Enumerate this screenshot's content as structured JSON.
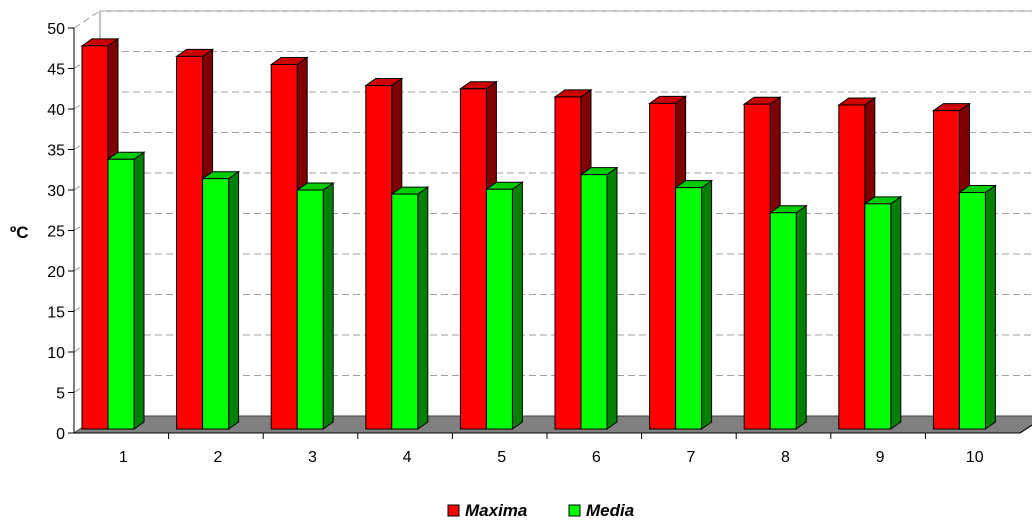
{
  "chart_data": {
    "type": "bar",
    "categories": [
      "1",
      "2",
      "3",
      "4",
      "5",
      "6",
      "7",
      "8",
      "9",
      "10"
    ],
    "series": [
      {
        "name": "Maxima",
        "color": "#ff0000",
        "values": [
          47.3,
          46.0,
          45.0,
          42.4,
          42.0,
          41.0,
          40.2,
          40.1,
          40.0,
          39.3
        ]
      },
      {
        "name": "Media",
        "color": "#00ff00",
        "values": [
          33.3,
          30.9,
          29.5,
          29.0,
          29.6,
          31.4,
          29.8,
          26.7,
          27.8,
          29.2
        ]
      }
    ],
    "title": "",
    "xlabel": "",
    "ylabel": "ºC",
    "ylim": [
      0,
      50
    ],
    "yticks": [
      0,
      5,
      10,
      15,
      20,
      25,
      30,
      35,
      40,
      45,
      50
    ],
    "grid": true,
    "legend_position": "bottom",
    "style": "3d-clustered-column",
    "floor_color": "#808080",
    "gridline_color": "#a0a0a0"
  }
}
